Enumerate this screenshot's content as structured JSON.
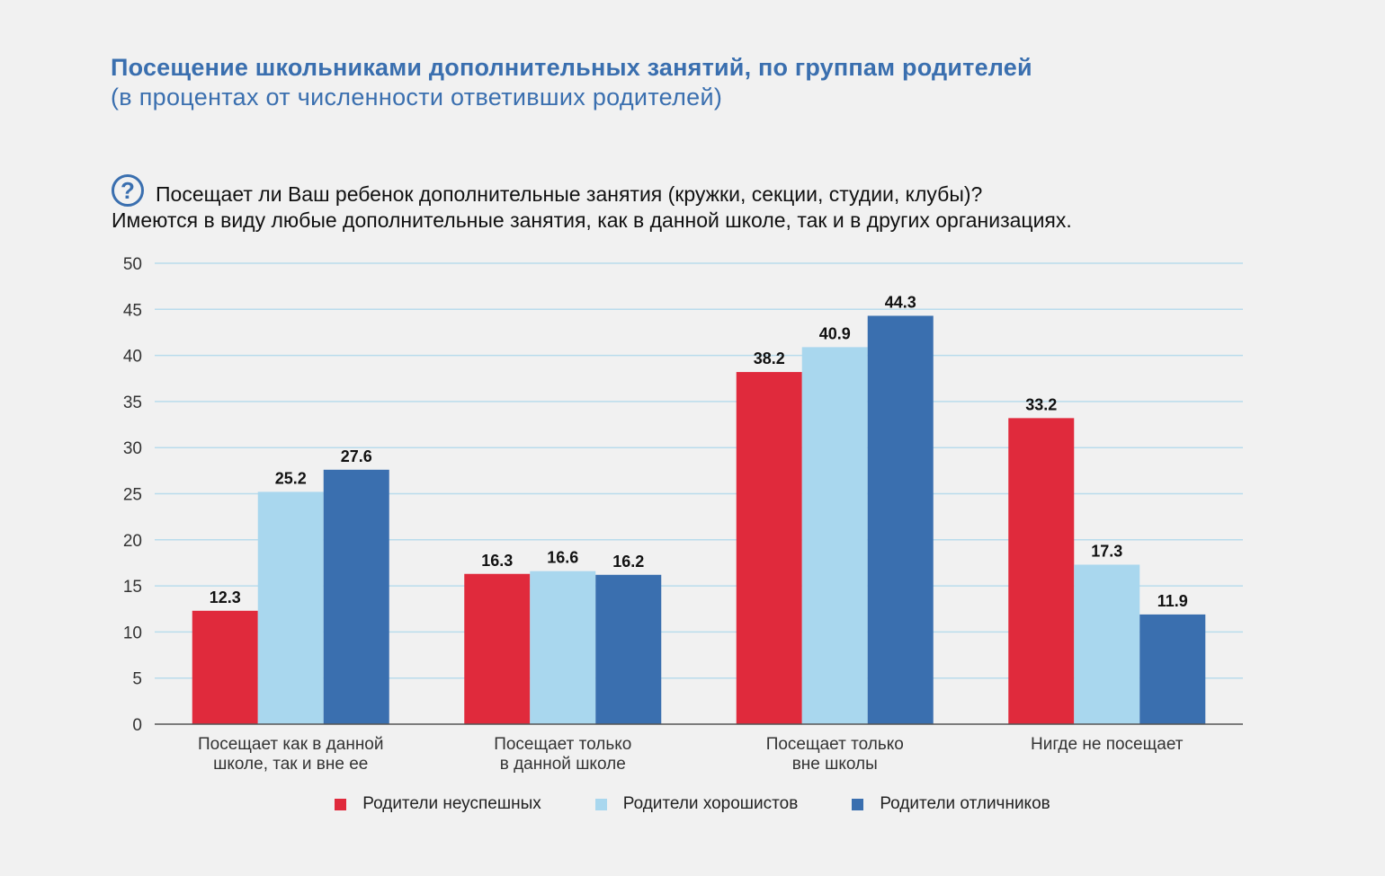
{
  "header": {
    "title": "Посещение школьниками дополнительных занятий, по группам родителей",
    "subtitle": "(в процентах от численности ответивших родителей)",
    "question_icon": "?",
    "question": "Посещает ли Ваш ребенок дополнительные занятия (кружки, секции, студии, клубы)?",
    "question_note": "Имеются в виду любые дополнительные занятия, как в данной школе, так и в других организациях."
  },
  "chart_data": {
    "type": "bar",
    "title": "Посещение школьниками дополнительных занятий, по группам родителей",
    "subtitle": "(в процентах от численности ответивших родителей)",
    "xlabel": "",
    "ylabel": "",
    "ylim": [
      0,
      50
    ],
    "yticks": [
      0,
      5,
      10,
      15,
      20,
      25,
      30,
      35,
      40,
      45,
      50
    ],
    "grid": true,
    "legend_position": "bottom",
    "categories": [
      [
        "Посещает как в данной",
        "школе, так и вне ее"
      ],
      [
        "Посещает только",
        "в данной школе"
      ],
      [
        "Посещает только",
        "вне школы"
      ],
      [
        "Нигде не посещает"
      ]
    ],
    "series": [
      {
        "name": "Родители неуспешных",
        "color": "#e02a3c",
        "values": [
          12.3,
          16.3,
          38.2,
          33.2
        ],
        "labels": [
          "12.3",
          "16.3",
          "38.2",
          "33.2"
        ]
      },
      {
        "name": "Родители хорошистов",
        "color": "#a9d7ee",
        "values": [
          25.2,
          16.6,
          40.9,
          17.3
        ],
        "labels": [
          "25.2",
          "16.6",
          "40.9",
          "17.3"
        ]
      },
      {
        "name": "Родители отличников",
        "color": "#3a6faf",
        "values": [
          27.6,
          16.2,
          44.3,
          11.9
        ],
        "labels": [
          "27.6",
          "16.2",
          "44.3",
          "11.9"
        ]
      }
    ]
  }
}
